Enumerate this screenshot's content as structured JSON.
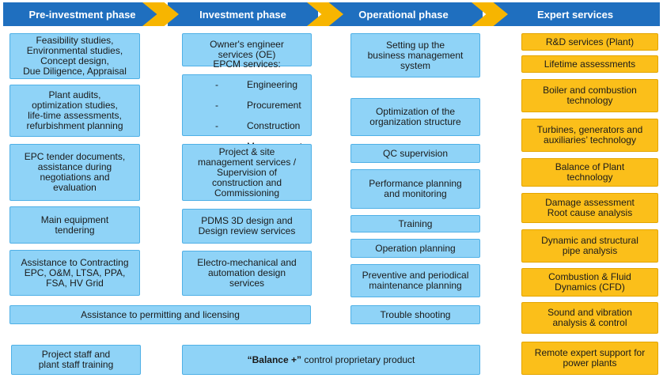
{
  "phases": [
    {
      "label": "Pre-investment phase"
    },
    {
      "label": "Investment phase"
    },
    {
      "label": "Operational phase"
    },
    {
      "label": "Expert services"
    }
  ],
  "pre_investment": [
    "Feasibility studies,\nEnvironmental studies,\nConcept design,\nDue Diligence, Appraisal",
    "Plant audits,\noptimization studies,\nlife-time assessments,\nrefurbishment planning",
    "EPC tender documents,\nassistance during\nnegotiations and\nevaluation",
    "Main equipment\ntendering",
    "Assistance to Contracting\nEPC, O&M, LTSA, PPA,\nFSA, HV Grid",
    "Project staff and\nplant staff training"
  ],
  "shared": {
    "permitting": "Assistance to permitting and licensing"
  },
  "investment": {
    "owners_engineer": "Owner's engineer\nservices (OE)",
    "epcm_title": "EPCM services:",
    "epcm_items": [
      "Engineering",
      "Procurement",
      "Construction",
      "Management"
    ],
    "project_site": "Project & site\nmanagement services /\nSupervision of\nconstruction and\nCommissioning",
    "pdms": "PDMS 3D design and\nDesign review services",
    "electro": "Electro-mechanical and\nautomation design\nservices",
    "balance_bold": "“Balance +”",
    "balance_rest": " control proprietary product"
  },
  "operational": [
    "Setting up the\nbusiness management\nsystem",
    "Optimization of the\norganization structure",
    "QC supervision",
    "Performance planning\nand monitoring",
    "Training",
    "Operation planning",
    "Preventive and periodical\nmaintenance planning",
    "Trouble shooting"
  ],
  "expert": [
    "R&D services (Plant)",
    "Lifetime assessments",
    "Boiler and combustion\ntechnology",
    "Turbines, generators and\nauxiliaries’ technology",
    "Balance of Plant\ntechnology",
    "Damage assessment\nRoot cause analysis",
    "Dynamic and structural\npipe analysis",
    "Combustion & Fluid\nDynamics (CFD)",
    "Sound and vibration\nanalysis & control",
    "Remote expert support for\npower plants"
  ],
  "colors": {
    "header_blue": "#1f6fbf",
    "chevron_orange": "#f7b500",
    "box_blue": "#8fd3f7",
    "box_orange": "#fbbf1a"
  }
}
